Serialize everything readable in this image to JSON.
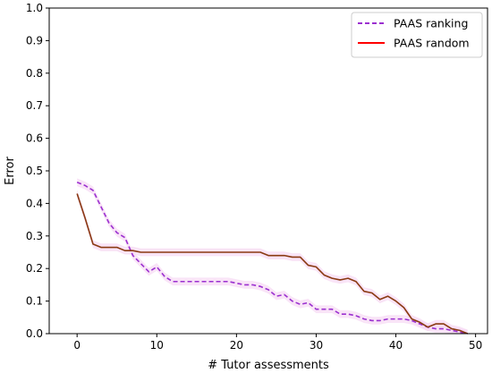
{
  "chart_data": {
    "type": "line",
    "xlabel": "# Tutor assessments",
    "ylabel": "Error",
    "xlim": [
      -3.5,
      51.5
    ],
    "ylim": [
      0,
      1.0
    ],
    "xticks": [
      0,
      10,
      20,
      30,
      40,
      50
    ],
    "yticks": [
      0.0,
      0.1,
      0.2,
      0.3,
      0.4,
      0.5,
      0.6,
      0.7,
      0.8,
      0.9,
      1.0
    ],
    "legend_position": "top-right",
    "band_color": "#f6d8f3",
    "series": [
      {
        "name": "PAAS ranking",
        "color": "#9b30d0",
        "style": "dashed",
        "x": [
          0,
          1,
          2,
          3,
          4,
          5,
          6,
          7,
          8,
          9,
          10,
          11,
          12,
          13,
          14,
          15,
          16,
          17,
          18,
          19,
          20,
          21,
          22,
          23,
          24,
          25,
          26,
          27,
          28,
          29,
          30,
          31,
          32,
          33,
          34,
          35,
          36,
          37,
          38,
          39,
          40,
          41,
          42,
          43,
          44,
          45,
          46,
          47,
          48,
          49
        ],
        "y": [
          0.465,
          0.455,
          0.44,
          0.39,
          0.34,
          0.31,
          0.295,
          0.24,
          0.215,
          0.19,
          0.205,
          0.175,
          0.16,
          0.16,
          0.16,
          0.16,
          0.16,
          0.16,
          0.16,
          0.16,
          0.155,
          0.15,
          0.15,
          0.145,
          0.135,
          0.115,
          0.12,
          0.1,
          0.09,
          0.095,
          0.075,
          0.075,
          0.075,
          0.06,
          0.06,
          0.055,
          0.045,
          0.04,
          0.04,
          0.045,
          0.045,
          0.045,
          0.04,
          0.03,
          0.02,
          0.015,
          0.015,
          0.01,
          0.005,
          0.0
        ]
      },
      {
        "name": "PAAS random",
        "color": "#ff0000",
        "display_color": "#8a3a12",
        "style": "solid",
        "x": [
          0,
          1,
          2,
          3,
          4,
          5,
          6,
          7,
          8,
          9,
          10,
          11,
          12,
          13,
          14,
          15,
          16,
          17,
          18,
          19,
          20,
          21,
          22,
          23,
          24,
          25,
          26,
          27,
          28,
          29,
          30,
          31,
          32,
          33,
          34,
          35,
          36,
          37,
          38,
          39,
          40,
          41,
          42,
          43,
          44,
          45,
          46,
          47,
          48,
          49
        ],
        "y": [
          0.43,
          0.355,
          0.275,
          0.265,
          0.265,
          0.265,
          0.255,
          0.255,
          0.25,
          0.25,
          0.25,
          0.25,
          0.25,
          0.25,
          0.25,
          0.25,
          0.25,
          0.25,
          0.25,
          0.25,
          0.25,
          0.25,
          0.25,
          0.25,
          0.24,
          0.24,
          0.24,
          0.235,
          0.235,
          0.21,
          0.205,
          0.18,
          0.17,
          0.165,
          0.17,
          0.16,
          0.13,
          0.125,
          0.105,
          0.115,
          0.1,
          0.08,
          0.045,
          0.035,
          0.02,
          0.03,
          0.03,
          0.015,
          0.01,
          0.0
        ]
      }
    ]
  }
}
